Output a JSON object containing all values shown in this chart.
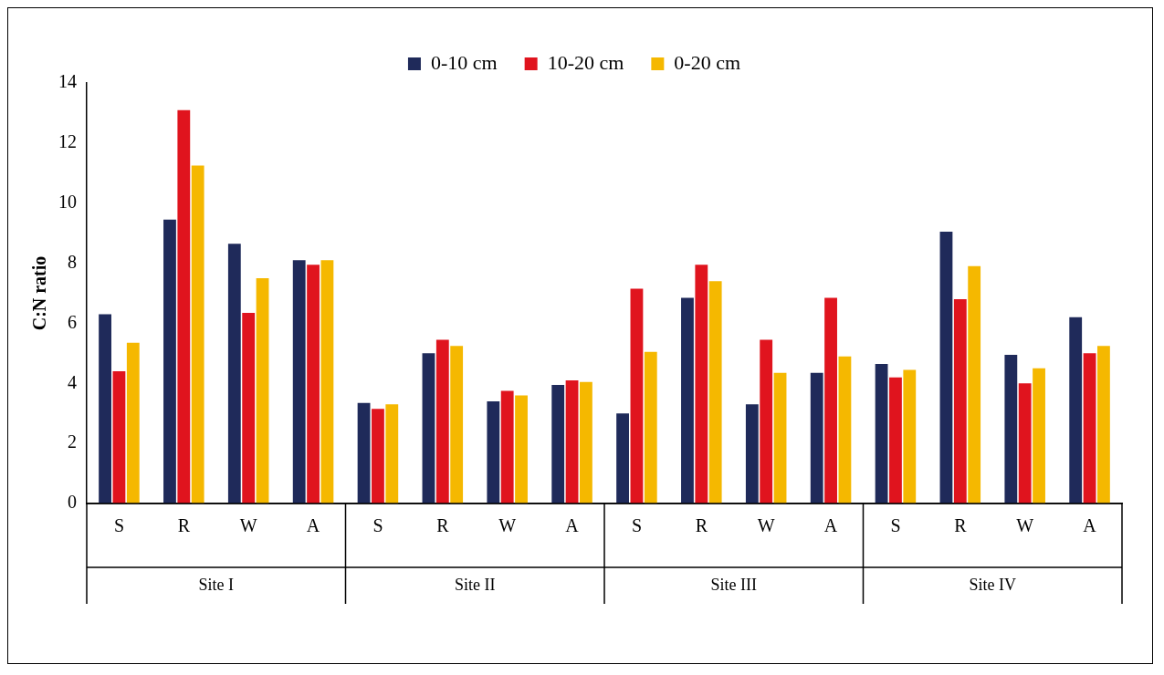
{
  "chart_data": {
    "type": "bar",
    "ylabel": "C:N ratio",
    "categories": [
      "S",
      "R",
      "W",
      "A",
      "S",
      "R",
      "W",
      "A",
      "S",
      "R",
      "W",
      "A",
      "S",
      "R",
      "W",
      "A"
    ],
    "series": [
      {
        "name": "0-10 cm",
        "color": "#1f2a5a",
        "values": [
          6.3,
          9.45,
          8.65,
          8.1,
          3.35,
          5.0,
          3.4,
          3.95,
          3.0,
          6.85,
          3.3,
          4.35,
          4.65,
          9.05,
          4.95,
          6.2
        ]
      },
      {
        "name": "10-20 cm",
        "color": "#e0141e",
        "values": [
          4.4,
          13.1,
          6.35,
          7.95,
          3.15,
          5.45,
          3.75,
          4.1,
          7.15,
          7.95,
          5.45,
          6.85,
          4.2,
          6.8,
          4.0,
          5.0
        ]
      },
      {
        "name": "0-20 cm",
        "color": "#f5b800",
        "values": [
          5.35,
          11.25,
          7.5,
          8.1,
          3.3,
          5.25,
          3.6,
          4.05,
          5.05,
          7.4,
          4.35,
          4.9,
          4.45,
          7.9,
          4.5,
          5.25
        ]
      }
    ],
    "annotations": [
      "Site I",
      "Site II",
      "Site III",
      "Site IV"
    ],
    "ylim": [
      0,
      14
    ],
    "yticks": [
      0,
      2,
      4,
      6,
      8,
      10,
      12,
      14
    ],
    "grid": false,
    "legend": "top"
  }
}
